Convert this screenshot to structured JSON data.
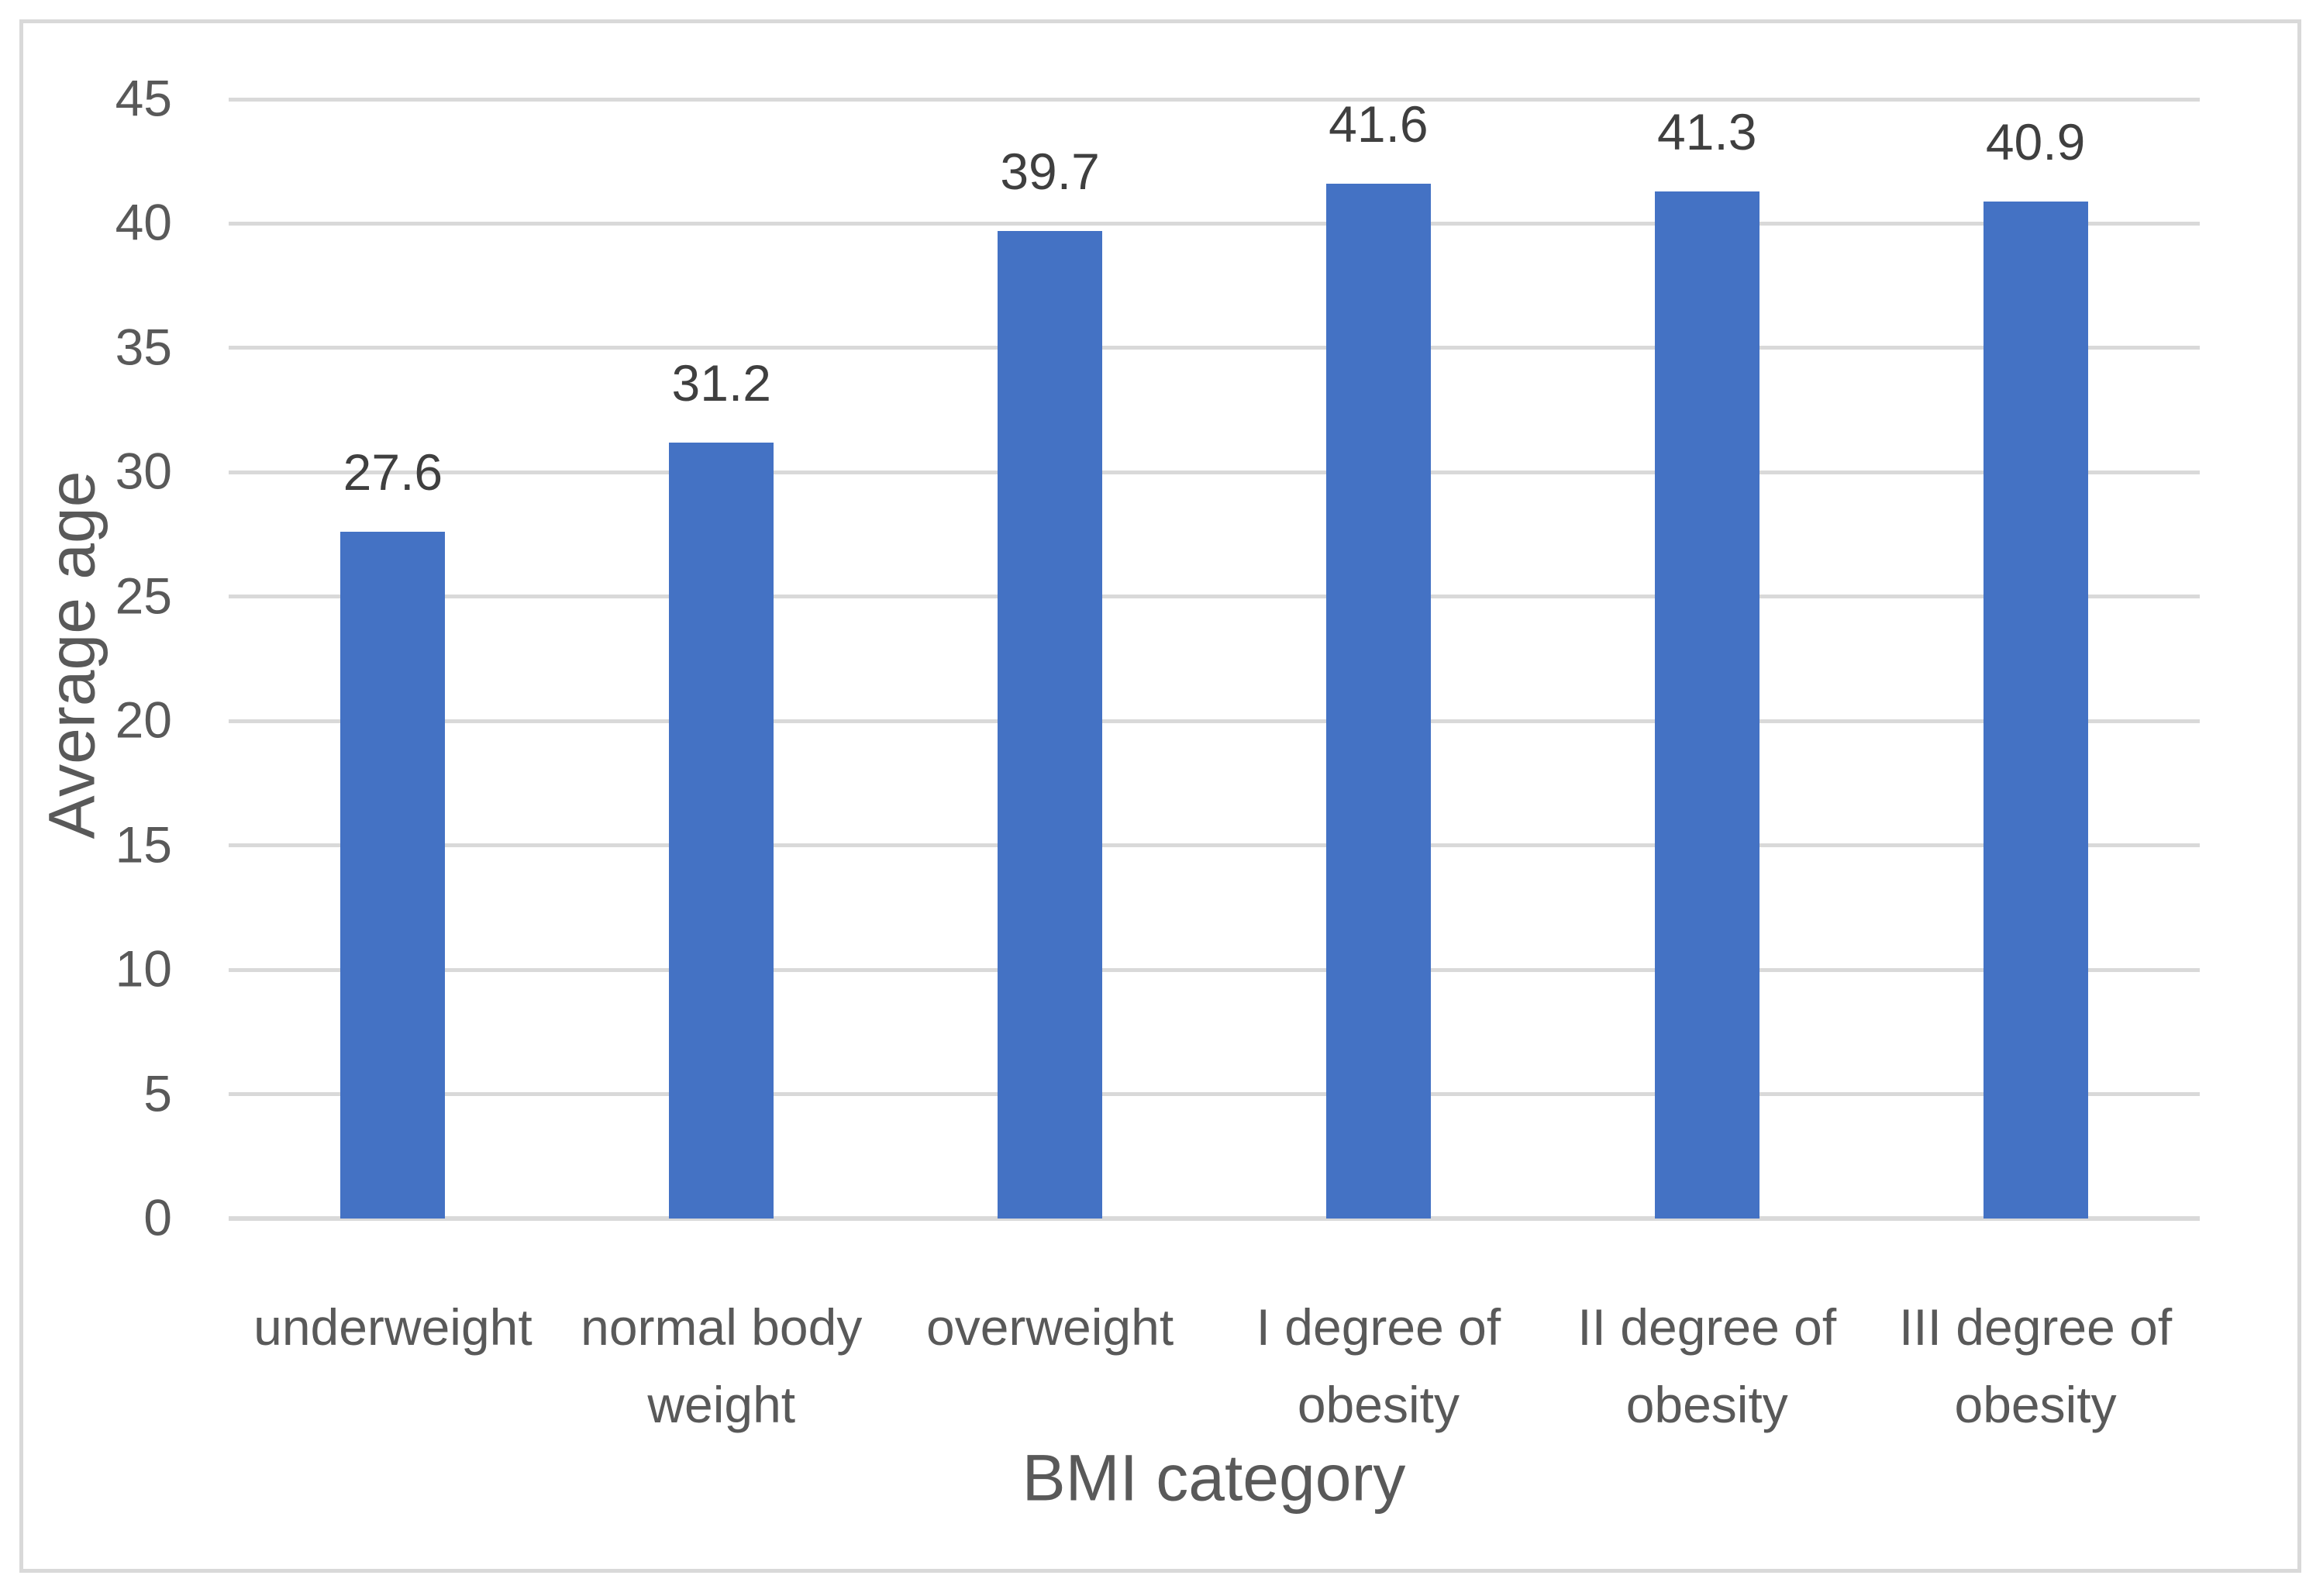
{
  "chart_data": {
    "type": "bar",
    "title": "",
    "categories": [
      "underweight",
      "normal body weight",
      "overweight",
      "I degree of obesity",
      "II degree of obesity",
      "III degree of obesity"
    ],
    "values": [
      27.6,
      31.2,
      39.7,
      41.6,
      41.3,
      40.9
    ],
    "data_labels": [
      "27.6",
      "31.2",
      "39.7",
      "41.6",
      "41.3",
      "40.9"
    ],
    "xlabel": "BMI category",
    "ylabel": "Average age",
    "ylim": [
      0,
      45
    ],
    "yticks": [
      0,
      5,
      10,
      15,
      20,
      25,
      30,
      35,
      40,
      45
    ],
    "grid": "horizontal",
    "legend_position": "none",
    "colors": {
      "bar": "#4472C4",
      "gridline": "#D9D9D9",
      "axis_line": "#D9D9D9",
      "frame_border": "#D9D9D9",
      "axis_text": "#595959",
      "data_label_text": "#3F3F3F",
      "background": "#FFFFFF"
    }
  }
}
